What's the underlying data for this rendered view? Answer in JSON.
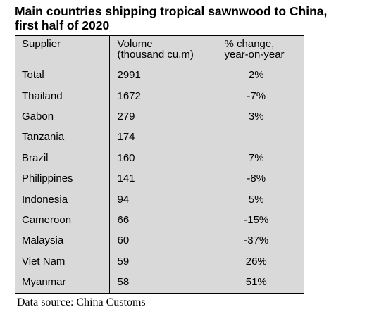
{
  "title": {
    "line1": "Main countries shipping tropical sawnwood to China,",
    "line2": "first half of 2020"
  },
  "table": {
    "headers": {
      "supplier": "Supplier",
      "volume_line1": "Volume",
      "volume_line2": "(thousand cu.m)",
      "change_line1": "% change,",
      "change_line2": "year-on-year"
    },
    "rows": [
      {
        "supplier": "Total",
        "volume": "2991",
        "change": "2%"
      },
      {
        "supplier": "Thailand",
        "volume": "1672",
        "change": "-7%"
      },
      {
        "supplier": "Gabon",
        "volume": "279",
        "change": "3%"
      },
      {
        "supplier": "Tanzania",
        "volume": "174",
        "change": ""
      },
      {
        "supplier": "Brazil",
        "volume": "160",
        "change": "7%"
      },
      {
        "supplier": "Philippines",
        "volume": "141",
        "change": "-8%"
      },
      {
        "supplier": "Indonesia",
        "volume": "94",
        "change": "5%"
      },
      {
        "supplier": "Cameroon",
        "volume": "66",
        "change": "-15%"
      },
      {
        "supplier": "Malaysia",
        "volume": "60",
        "change": "-37%"
      },
      {
        "supplier": "Viet Nam",
        "volume": "59",
        "change": "26%"
      },
      {
        "supplier": "Myanmar",
        "volume": "58",
        "change": "51%"
      }
    ],
    "background_color": "#d9d9d9"
  },
  "source": "Data source: China Customs"
}
